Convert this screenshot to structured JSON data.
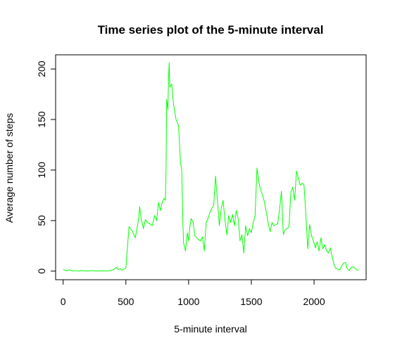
{
  "chart_data": {
    "type": "line",
    "title": "Time series plot of the 5-minute interval",
    "xlabel": "5-minute interval",
    "ylabel": "Average number of steps",
    "xlim": [
      -60,
      2415
    ],
    "ylim": [
      -8.5,
      214
    ],
    "xticks": [
      0,
      500,
      1000,
      1500,
      2000
    ],
    "yticks": [
      0,
      50,
      100,
      150,
      200
    ],
    "xtick_labels": [
      "0",
      "500",
      "1000",
      "1500",
      "2000"
    ],
    "ytick_labels": [
      "0",
      "50",
      "100",
      "150",
      "200"
    ],
    "grid": false,
    "series": [
      {
        "color": "#00ff00",
        "x": [
          0,
          25,
          50,
          75,
          100,
          125,
          150,
          175,
          200,
          225,
          250,
          275,
          300,
          325,
          350,
          375,
          400,
          415,
          425,
          440,
          455,
          470,
          500,
          525,
          550,
          575,
          600,
          610,
          620,
          640,
          655,
          670,
          690,
          710,
          730,
          745,
          760,
          775,
          790,
          805,
          815,
          820,
          825,
          835,
          840,
          845,
          850,
          865,
          880,
          900,
          920,
          935,
          945,
          955,
          960,
          975,
          990,
          1000,
          1010,
          1020,
          1035,
          1050,
          1065,
          1080,
          1095,
          1110,
          1125,
          1140,
          1155,
          1170,
          1185,
          1200,
          1215,
          1230,
          1245,
          1260,
          1275,
          1290,
          1305,
          1320,
          1335,
          1350,
          1365,
          1380,
          1395,
          1410,
          1425,
          1440,
          1455,
          1470,
          1485,
          1500,
          1515,
          1530,
          1545,
          1560,
          1575,
          1590,
          1605,
          1620,
          1635,
          1650,
          1665,
          1680,
          1695,
          1710,
          1725,
          1740,
          1755,
          1770,
          1785,
          1800,
          1815,
          1830,
          1845,
          1860,
          1875,
          1890,
          1905,
          1920,
          1935,
          1950,
          1965,
          1980,
          1995,
          2010,
          2025,
          2040,
          2055,
          2070,
          2085,
          2100,
          2115,
          2130,
          2145,
          2160,
          2175,
          2190,
          2205,
          2220,
          2235,
          2250,
          2265,
          2280,
          2295,
          2310,
          2325,
          2340,
          2355
        ],
        "y": [
          1.7,
          0.3,
          1.3,
          0.2,
          0.5,
          0.1,
          0.7,
          0.2,
          0.1,
          0.5,
          0.2,
          0.1,
          0.3,
          0.2,
          0.1,
          0.6,
          1.5,
          2.5,
          3.7,
          1.5,
          2.5,
          1.0,
          3.0,
          44.0,
          40.0,
          33.0,
          50.0,
          63.8,
          53.0,
          42.0,
          51.0,
          48.0,
          47.0,
          45.0,
          55.0,
          50.0,
          68.0,
          60.0,
          68.0,
          72.0,
          70.0,
          100.0,
          170.0,
          160.0,
          190.0,
          206.2,
          182.0,
          185.0,
          165.0,
          150.0,
          144.0,
          108.0,
          100.0,
          45.0,
          28.0,
          20.0,
          38.0,
          30.0,
          44.0,
          52.0,
          49.0,
          35.0,
          33.0,
          31.0,
          30.0,
          34.0,
          20.0,
          48.0,
          52.0,
          58.0,
          62.0,
          65.0,
          94.0,
          70.0,
          45.0,
          62.0,
          70.0,
          50.0,
          36.0,
          55.0,
          48.0,
          56.0,
          45.0,
          60.0,
          52.0,
          30.0,
          36.0,
          18.0,
          45.0,
          35.0,
          42.0,
          38.0,
          48.0,
          55.0,
          102.0,
          88.0,
          80.0,
          75.0,
          68.0,
          58.0,
          47.0,
          39.0,
          48.0,
          45.0,
          46.0,
          47.0,
          61.0,
          79.0,
          36.0,
          41.0,
          42.0,
          44.0,
          78.0,
          83.0,
          70.0,
          99.0,
          92.0,
          85.0,
          87.0,
          85.0,
          55.0,
          22.0,
          46.0,
          35.0,
          30.0,
          23.0,
          29.0,
          20.0,
          33.0,
          22.0,
          26.0,
          20.0,
          18.0,
          23.0,
          14.0,
          6.0,
          2.5,
          2.0,
          1.5,
          5.0,
          8.0,
          8.5,
          2.5,
          0.5,
          3.5,
          4.5,
          3.0,
          1.0,
          1.2
        ]
      }
    ]
  }
}
